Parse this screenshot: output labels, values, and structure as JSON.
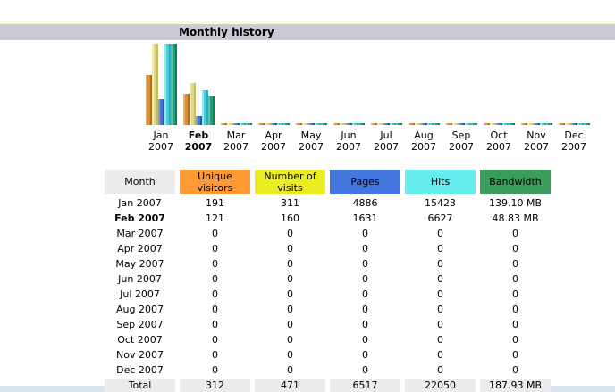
{
  "section": {
    "title": "Monthly history"
  },
  "colors": {
    "title_bar_bg": "#CCCCD6",
    "ivory_line": "#FAF8E4",
    "month_header_bg": "#ECECEC",
    "total_row_bg": "#ECECEC",
    "bottom_strip": "#D9E4EE",
    "header_orange": "#FF9933",
    "header_yellow": "#ECEC22",
    "header_blue": "#4477DD",
    "header_cyan": "#66EEEE",
    "header_green": "#3A9D5C"
  },
  "chart_data": {
    "type": "bar",
    "title": "Monthly history",
    "xlabel": "",
    "ylabel": "",
    "grid": false,
    "legend_position": "none",
    "categories": [
      "Jan 2007",
      "Feb 2007",
      "Mar 2007",
      "Apr 2007",
      "May 2007",
      "Jun 2007",
      "Jul 2007",
      "Aug 2007",
      "Sep 2007",
      "Oct 2007",
      "Nov 2007",
      "Dec 2007"
    ],
    "bold_category": "Feb 2007",
    "series": [
      {
        "name": "Unique visitors",
        "scale_group": "visits",
        "color": "#E08C30",
        "color_light": "#F2B05C",
        "color_dark": "#B86A14",
        "values": [
          191,
          121,
          0,
          0,
          0,
          0,
          0,
          0,
          0,
          0,
          0,
          0
        ]
      },
      {
        "name": "Number of visits",
        "scale_group": "visits",
        "color": "#E2D88A",
        "color_light": "#F2ECB0",
        "color_dark": "#C8BC62",
        "values": [
          311,
          160,
          0,
          0,
          0,
          0,
          0,
          0,
          0,
          0,
          0,
          0
        ]
      },
      {
        "name": "Pages",
        "scale_group": "pages_hits",
        "color": "#4A72D0",
        "color_light": "#7C9CE4",
        "color_dark": "#2C50A8",
        "values": [
          4886,
          1631,
          0,
          0,
          0,
          0,
          0,
          0,
          0,
          0,
          0,
          0
        ]
      },
      {
        "name": "Hits",
        "scale_group": "pages_hits",
        "color": "#48CCD8",
        "color_light": "#8CEAF0",
        "color_dark": "#28A8B8",
        "values": [
          15423,
          6627,
          0,
          0,
          0,
          0,
          0,
          0,
          0,
          0,
          0,
          0
        ]
      },
      {
        "name": "Bandwidth (MB)",
        "scale_group": "bandwidth",
        "color": "#22A078",
        "color_light": "#5CC49C",
        "color_dark": "#0E7E58",
        "values": [
          139.1,
          48.83,
          0,
          0,
          0,
          0,
          0,
          0,
          0,
          0,
          0,
          0
        ]
      }
    ]
  },
  "table": {
    "columns": [
      {
        "label": "Month",
        "bg": "#ECECEC"
      },
      {
        "label": "Unique visitors",
        "bg": "#FF9933"
      },
      {
        "label": "Number of visits",
        "bg": "#ECEC22"
      },
      {
        "label": "Pages",
        "bg": "#4477DD"
      },
      {
        "label": "Hits",
        "bg": "#66EEEE"
      },
      {
        "label": "Bandwidth",
        "bg": "#3A9D5C"
      }
    ],
    "rows": [
      {
        "month": "Jan 2007",
        "bold": false,
        "values": [
          "191",
          "311",
          "4886",
          "15423",
          "139.10 MB"
        ]
      },
      {
        "month": "Feb 2007",
        "bold": true,
        "values": [
          "121",
          "160",
          "1631",
          "6627",
          "48.83 MB"
        ]
      },
      {
        "month": "Mar 2007",
        "bold": false,
        "values": [
          "0",
          "0",
          "0",
          "0",
          "0"
        ]
      },
      {
        "month": "Apr 2007",
        "bold": false,
        "values": [
          "0",
          "0",
          "0",
          "0",
          "0"
        ]
      },
      {
        "month": "May 2007",
        "bold": false,
        "values": [
          "0",
          "0",
          "0",
          "0",
          "0"
        ]
      },
      {
        "month": "Jun 2007",
        "bold": false,
        "values": [
          "0",
          "0",
          "0",
          "0",
          "0"
        ]
      },
      {
        "month": "Jul 2007",
        "bold": false,
        "values": [
          "0",
          "0",
          "0",
          "0",
          "0"
        ]
      },
      {
        "month": "Aug 2007",
        "bold": false,
        "values": [
          "0",
          "0",
          "0",
          "0",
          "0"
        ]
      },
      {
        "month": "Sep 2007",
        "bold": false,
        "values": [
          "0",
          "0",
          "0",
          "0",
          "0"
        ]
      },
      {
        "month": "Oct 2007",
        "bold": false,
        "values": [
          "0",
          "0",
          "0",
          "0",
          "0"
        ]
      },
      {
        "month": "Nov 2007",
        "bold": false,
        "values": [
          "0",
          "0",
          "0",
          "0",
          "0"
        ]
      },
      {
        "month": "Dec 2007",
        "bold": false,
        "values": [
          "0",
          "0",
          "0",
          "0",
          "0"
        ]
      }
    ],
    "total": {
      "label": "Total",
      "values": [
        "312",
        "471",
        "6517",
        "22050",
        "187.93 MB"
      ]
    }
  }
}
